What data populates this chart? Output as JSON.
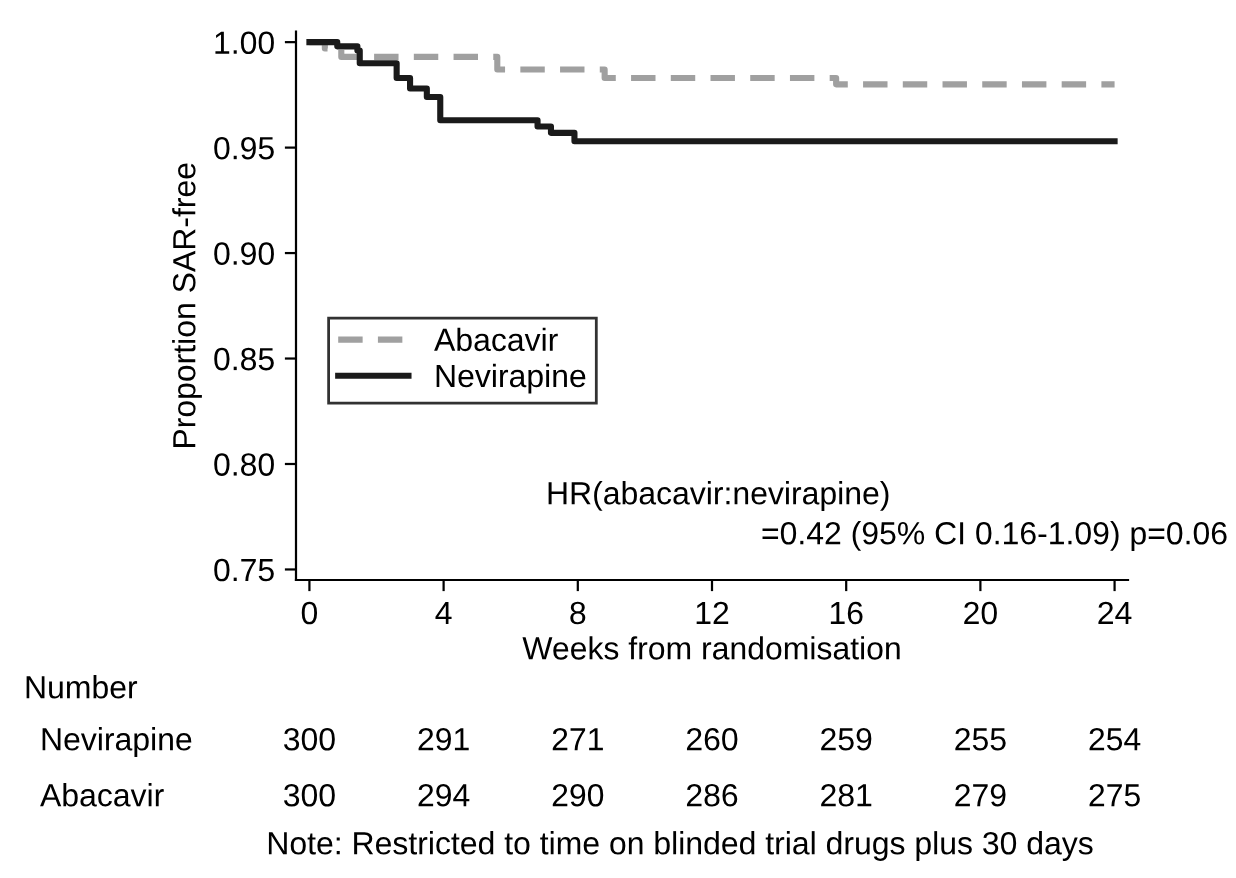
{
  "chart_data": {
    "type": "step",
    "ylabel": "Proportion SAR-free",
    "xlabel": "Weeks from randomisation",
    "series": [
      {
        "name": "Abacavir",
        "color": "#a0a0a0",
        "line_style": "dashed",
        "x": [
          0,
          0.46,
          0.95,
          5.6,
          8.8,
          15.7,
          24
        ],
        "values": [
          1.0,
          0.997,
          0.993,
          0.987,
          0.983,
          0.98,
          0.98
        ]
      },
      {
        "name": "Nevirapine",
        "color": "#1a1a1a",
        "line_style": "solid",
        "x": [
          0,
          0.83,
          1.43,
          1.5,
          2.6,
          3.0,
          3.5,
          3.9,
          6.8,
          7.2,
          7.9,
          24
        ],
        "values": [
          1.0,
          0.998,
          0.996,
          0.99,
          0.983,
          0.978,
          0.974,
          0.963,
          0.96,
          0.957,
          0.953,
          0.953
        ]
      }
    ],
    "xlim": [
      -0.4,
      24.4
    ],
    "xticks": [
      0,
      4,
      8,
      12,
      16,
      20,
      24
    ],
    "ylim": [
      0.745,
      1.005
    ],
    "yticks": [
      {
        "value": 0.75,
        "label": "0.75"
      },
      {
        "value": 0.8,
        "label": "0.80"
      },
      {
        "value": 0.85,
        "label": "0.85"
      },
      {
        "value": 0.9,
        "label": "0.90"
      },
      {
        "value": 0.95,
        "label": "0.95"
      },
      {
        "value": 1.0,
        "label": "1.00"
      }
    ],
    "grid": false,
    "legend": "left",
    "annotations": [
      "HR(abacavir:nevirapine)\n=0.42 (95% CI 0.16-1.09) p=0.06",
      "Number",
      "Nevirapine 300 291 271 260 259 255 254",
      "Abacavir 300 294 290 286 281 279 275",
      "Note: Restricted to time on blinded trial drugs plus 30 days"
    ]
  }
}
